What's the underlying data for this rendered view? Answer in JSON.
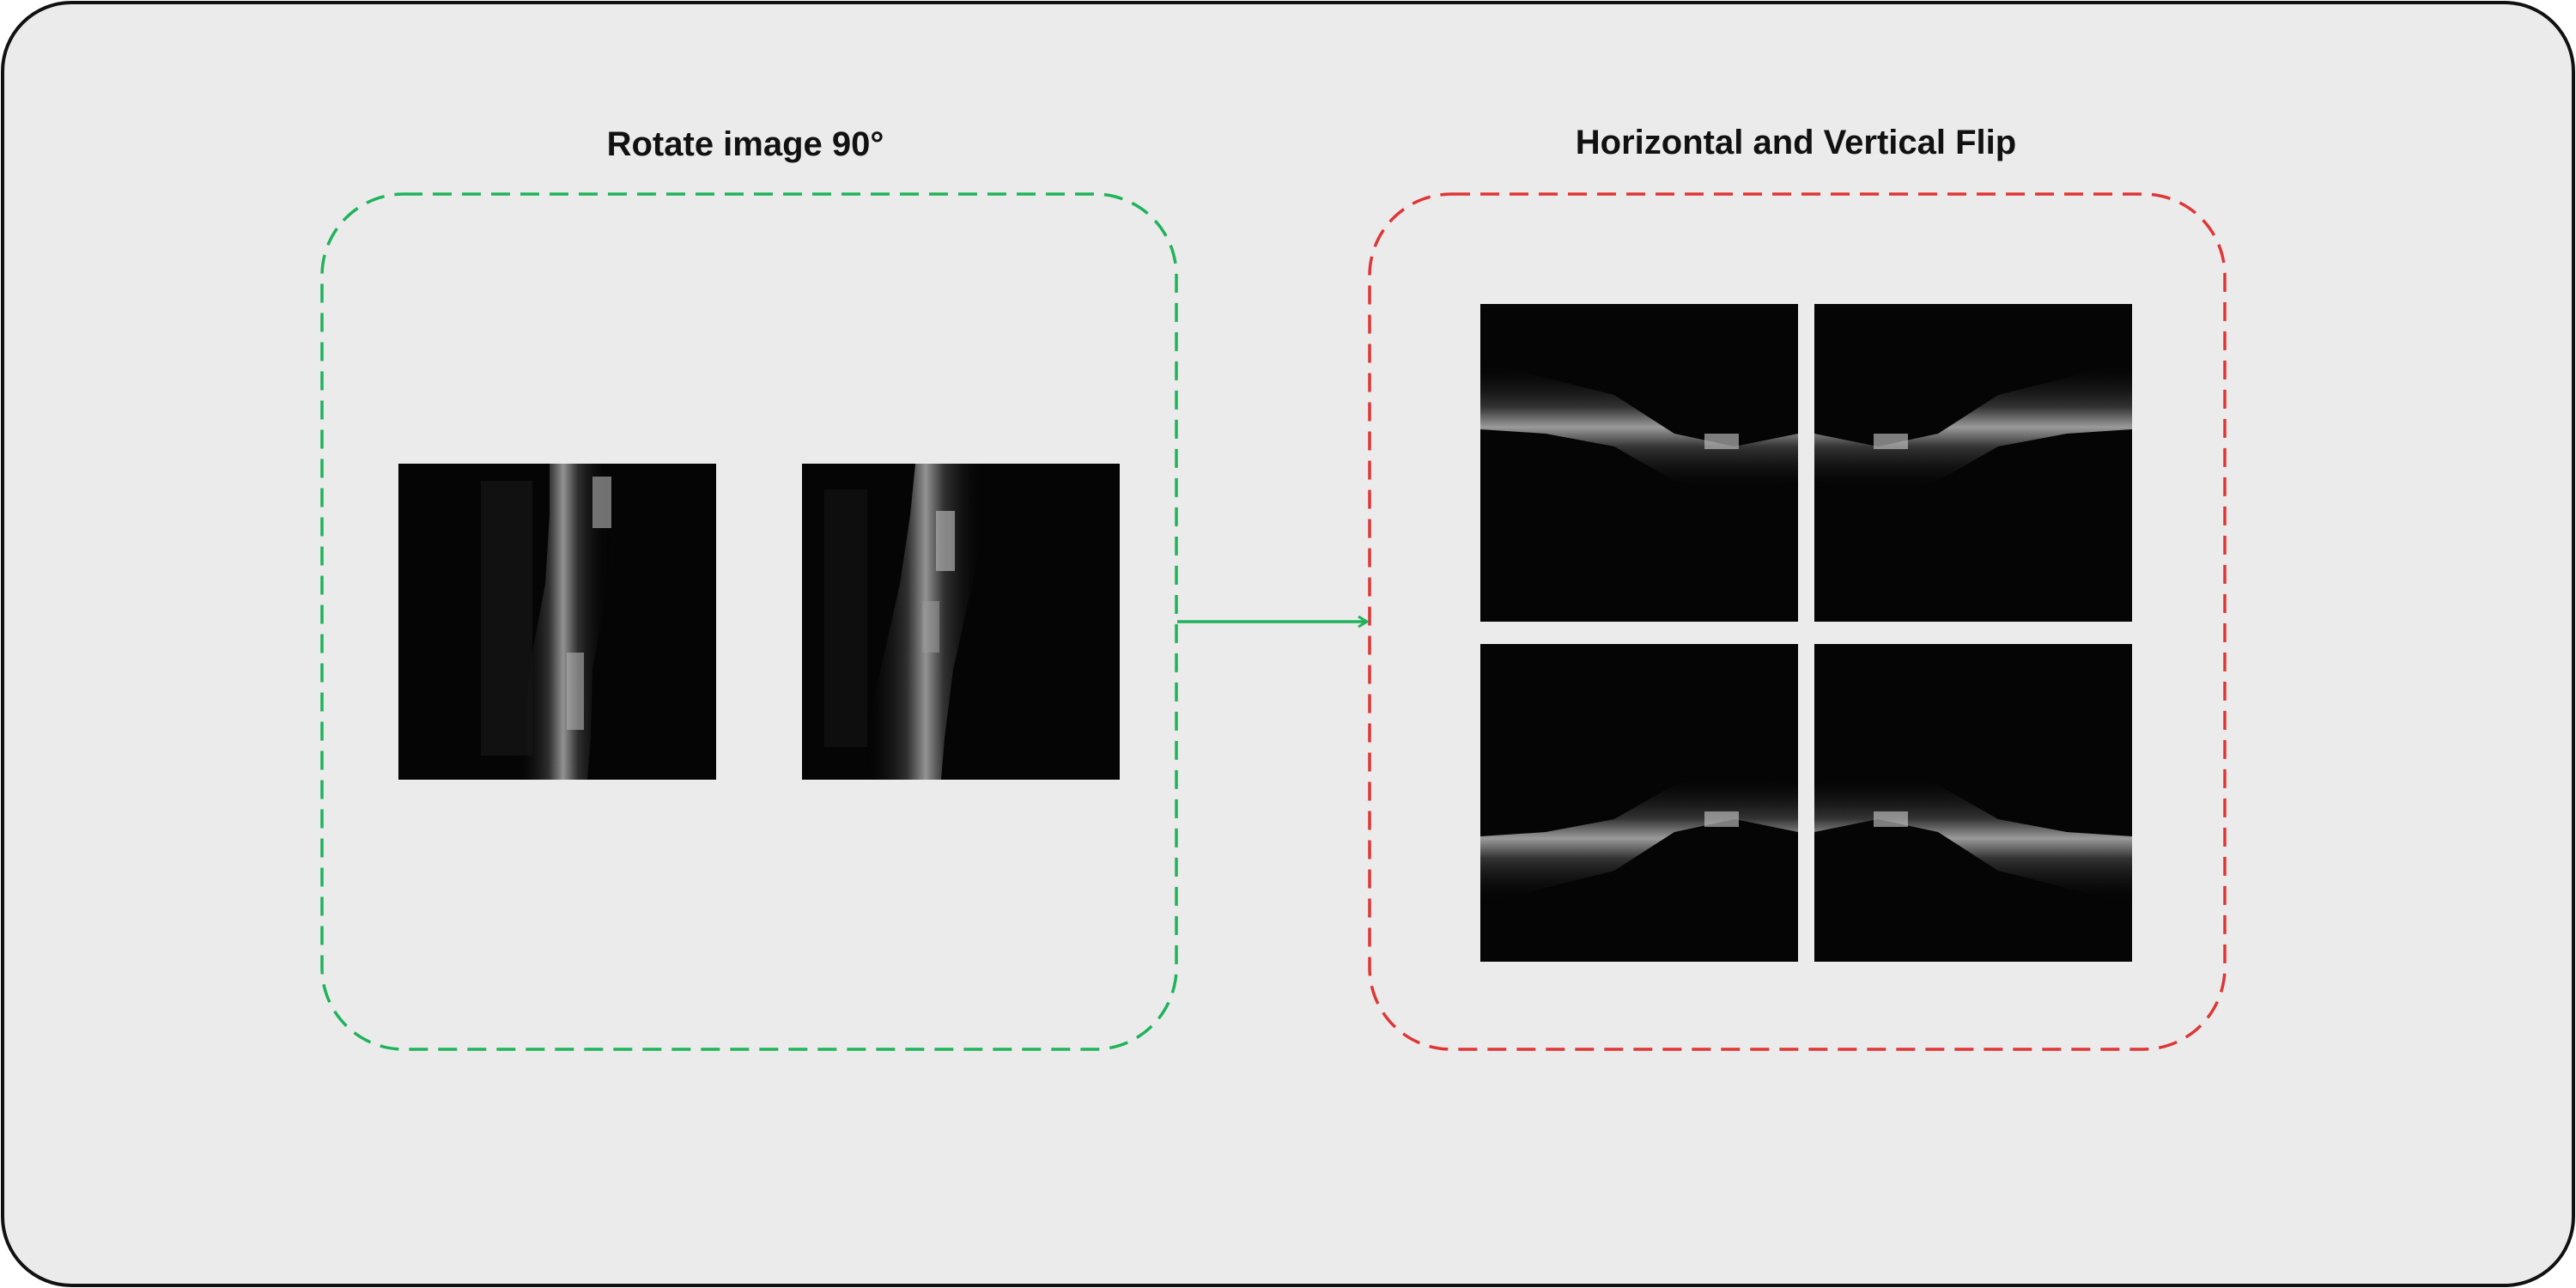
{
  "sections": {
    "left": {
      "title": "Rotate image 90°",
      "images": [
        "original-image",
        "rotated-image"
      ]
    },
    "right": {
      "title": "Horizontal and Vertical Flip",
      "images": [
        "original-image",
        "horizontal-flip-image",
        "vertical-flip-image",
        "horizontal-and-vertical-flip-image"
      ]
    }
  },
  "colors": {
    "background": "#ebebeb",
    "border": "#111111",
    "left_group": "#1fb35a",
    "right_group": "#e03535",
    "arrow": "#1fb35a",
    "image_background": "#050505"
  }
}
